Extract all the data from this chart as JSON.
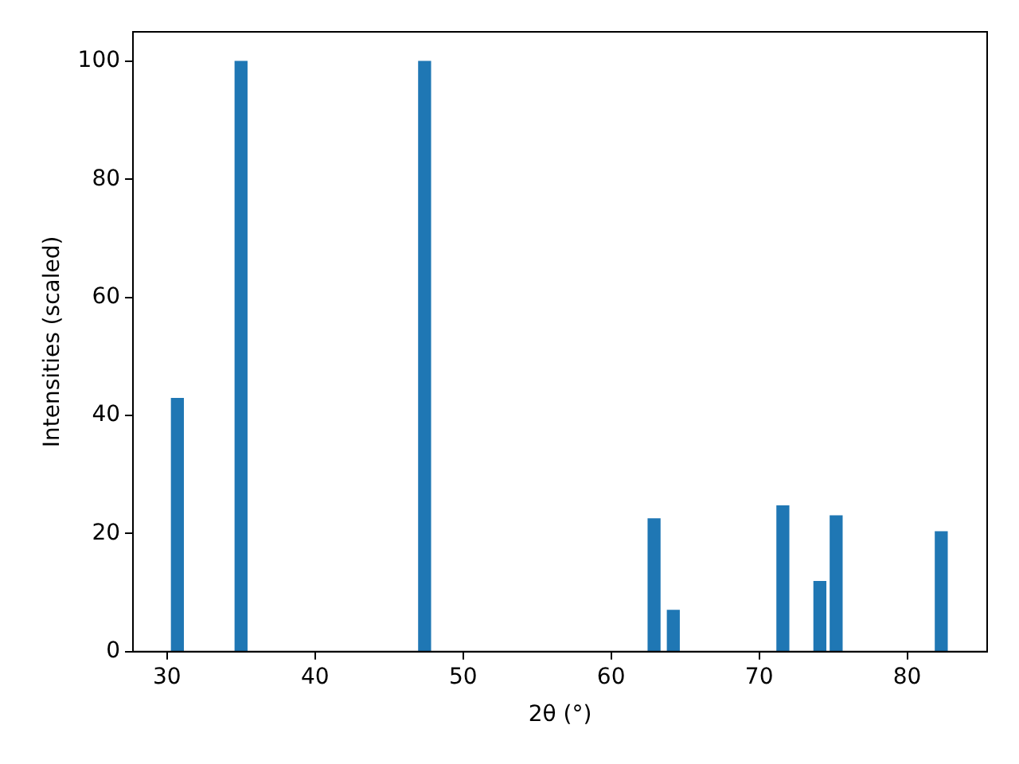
{
  "chart_data": {
    "type": "bar",
    "xlabel": "2θ (°)",
    "ylabel": "Intensities (scaled)",
    "x": [
      30.7,
      35.0,
      47.4,
      62.9,
      64.2,
      71.6,
      74.1,
      75.2,
      82.3
    ],
    "values": [
      42.9,
      100,
      100,
      22.5,
      7.0,
      24.7,
      11.9,
      23.0,
      20.3
    ],
    "color": "#1f77b4",
    "xlim": [
      27.7,
      85.4
    ],
    "xticks": [
      30,
      40,
      50,
      60,
      70,
      80
    ],
    "ylim": [
      0,
      105
    ],
    "yticks": [
      0,
      20,
      40,
      60,
      80,
      100
    ],
    "grid": false,
    "legend": false
  }
}
